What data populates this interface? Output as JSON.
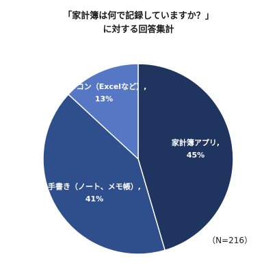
{
  "title": [
    "「家計簿は何で記録していますか？」",
    "に対する回答集計"
  ],
  "note": "（N=216）",
  "chart_data": {
    "type": "pie",
    "title": "「家計簿は何で記録していますか？」に対する回答集計",
    "slices": [
      {
        "label": "家計簿アプリ,",
        "pct_label": "45%",
        "value": 45,
        "color": "#1f3560"
      },
      {
        "label": "手書き（ノート、メモ帳）,",
        "pct_label": "41%",
        "value": 41,
        "color": "#2e4e8c"
      },
      {
        "label": "パソコン（Excelなど）,",
        "pct_label": "13%",
        "value": 13,
        "color": "#5577c4"
      }
    ]
  }
}
